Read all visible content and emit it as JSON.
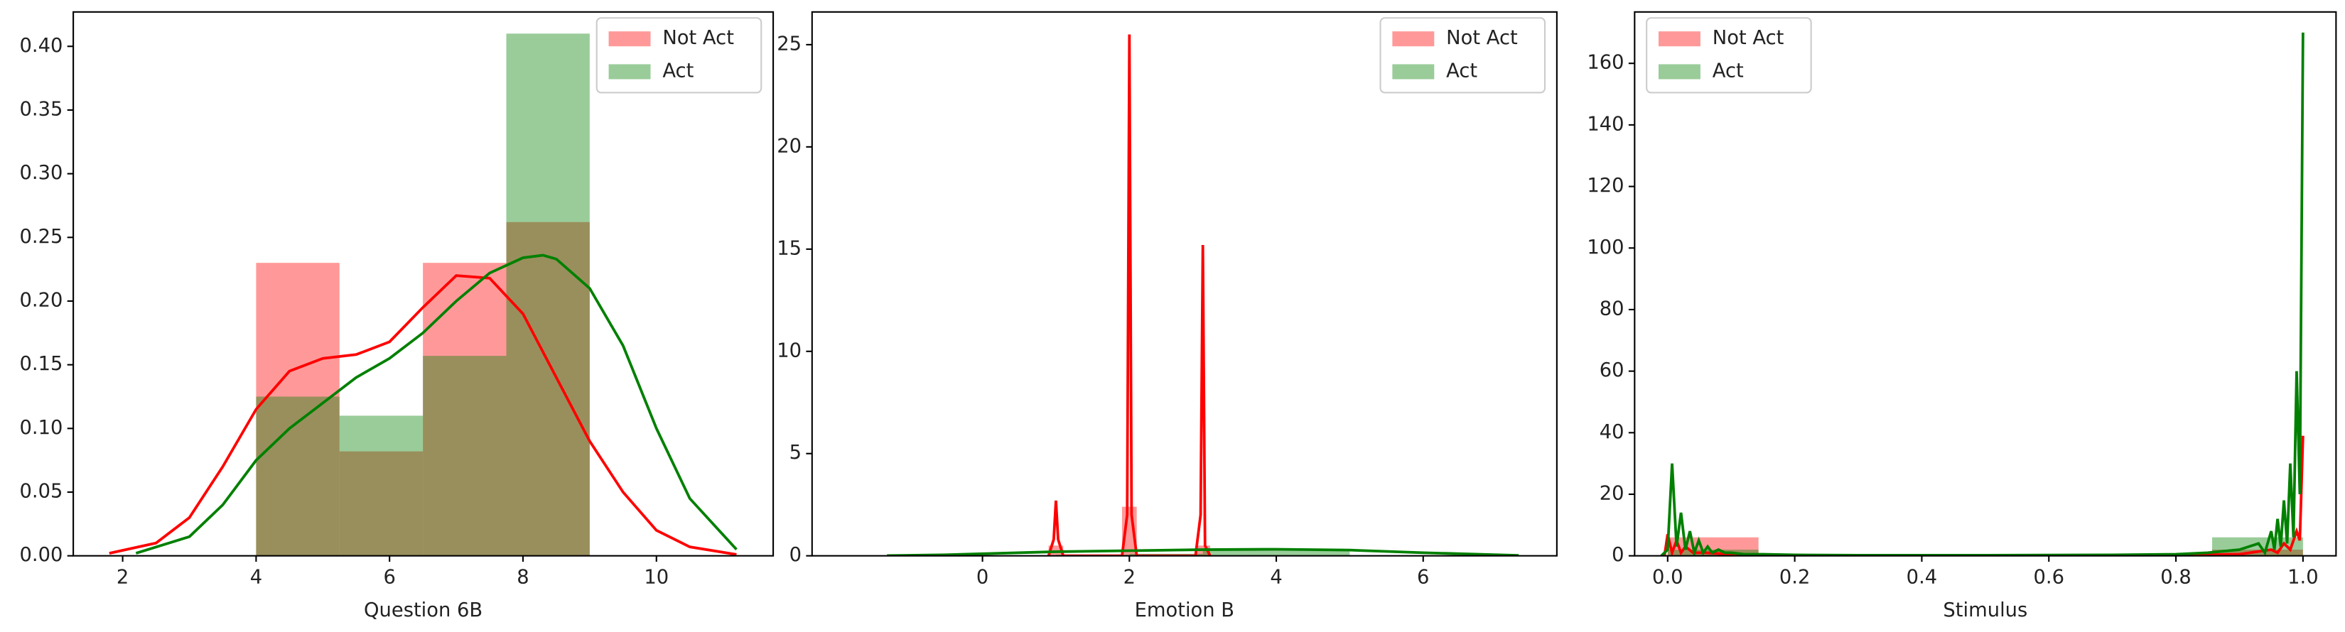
{
  "chart_data": [
    {
      "type": "histogram",
      "xlabel": "Question 6B",
      "legend": "upper right",
      "xlim": [
        1.26,
        11.75
      ],
      "ylim": [
        0,
        0.427
      ],
      "xticks": [
        2,
        4,
        6,
        8,
        10
      ],
      "yticks": [
        {
          "value": 0,
          "label": "0.00"
        },
        {
          "value": 0.05,
          "label": "0.05"
        },
        {
          "value": 0.1,
          "label": "0.10"
        },
        {
          "value": 0.15,
          "label": "0.15"
        },
        {
          "value": 0.2,
          "label": "0.20"
        },
        {
          "value": 0.25,
          "label": "0.25"
        },
        {
          "value": 0.3,
          "label": "0.30"
        },
        {
          "value": 0.35,
          "label": "0.35"
        },
        {
          "value": 0.4,
          "label": "0.40"
        }
      ],
      "series": [
        {
          "name": "Not Act",
          "color": "#ff0000",
          "bins": [
            4,
            5.25,
            6.5,
            7.75,
            9
          ],
          "values": [
            0.23,
            0.082,
            0.23,
            0.262
          ],
          "line": {
            "x": [
              1.8,
              2.5,
              3,
              3.5,
              4,
              4.5,
              5,
              5.5,
              6,
              6.5,
              7,
              7.5,
              8,
              8.5,
              9,
              9.5,
              10,
              10.5,
              11.2
            ],
            "values": [
              0.002,
              0.01,
              0.03,
              0.07,
              0.115,
              0.145,
              0.155,
              0.158,
              0.168,
              0.195,
              0.22,
              0.218,
              0.19,
              0.14,
              0.09,
              0.05,
              0.02,
              0.007,
              0.001
            ]
          }
        },
        {
          "name": "Act",
          "color": "#008000",
          "bins": [
            4,
            5.25,
            6.5,
            7.75,
            9
          ],
          "values": [
            0.125,
            0.11,
            0.157,
            0.41
          ],
          "line": {
            "x": [
              2.2,
              3,
              3.5,
              4,
              4.5,
              5,
              5.5,
              6,
              6.5,
              7,
              7.5,
              8,
              8.3,
              8.5,
              9,
              9.5,
              10,
              10.5,
              11.2
            ],
            "values": [
              0.002,
              0.015,
              0.04,
              0.075,
              0.1,
              0.12,
              0.14,
              0.155,
              0.175,
              0.2,
              0.222,
              0.234,
              0.236,
              0.233,
              0.21,
              0.165,
              0.1,
              0.045,
              0.005
            ]
          }
        }
      ]
    },
    {
      "type": "histogram",
      "xlabel": "Emotion B",
      "legend": "upper right",
      "xlim": [
        -2.32,
        7.82
      ],
      "ylim": [
        0,
        26.6
      ],
      "xticks": [
        0,
        2,
        4,
        6
      ],
      "yticks": [
        0,
        5,
        10,
        15,
        20,
        25
      ],
      "series": [
        {
          "name": "Not Act",
          "color": "#ff0000",
          "bins": [
            0.9,
            1.1,
            1.3,
            1.5,
            1.7,
            1.9,
            2.1,
            2.3,
            2.5,
            2.7,
            2.9,
            3.1
          ],
          "values": [
            0.5,
            0,
            0,
            0,
            0,
            2.4,
            0,
            0,
            0,
            0,
            0.5
          ],
          "line": {
            "x": [
              0.9,
              0.97,
              1,
              1.03,
              1.1,
              1.9,
              1.97,
              2,
              2.03,
              2.1,
              2.9,
              2.97,
              3,
              3.03,
              3.1
            ],
            "values": [
              0,
              0.8,
              2.7,
              0.8,
              0,
              0,
              2,
              25.5,
              2,
              0,
              0,
              2,
              15.2,
              0.5,
              0
            ]
          }
        },
        {
          "name": "Act",
          "color": "#008000",
          "bins": [
            1,
            2,
            3,
            4,
            5
          ],
          "values": [
            0.05,
            0.1,
            0.3,
            0.3
          ],
          "line": {
            "x": [
              -1.3,
              -0.5,
              0,
              1,
              2,
              3,
              4,
              5,
              6,
              7.3
            ],
            "values": [
              0.01,
              0.05,
              0.1,
              0.2,
              0.25,
              0.3,
              0.32,
              0.28,
              0.15,
              0.02
            ]
          }
        }
      ]
    },
    {
      "type": "histogram",
      "xlabel": "Stimulus",
      "legend": "upper left",
      "xlim": [
        -0.052,
        1.052
      ],
      "ylim": [
        0,
        176.7
      ],
      "xticks": [
        {
          "value": 0,
          "label": "0.0"
        },
        {
          "value": 0.2,
          "label": "0.2"
        },
        {
          "value": 0.4,
          "label": "0.4"
        },
        {
          "value": 0.6,
          "label": "0.6"
        },
        {
          "value": 0.8,
          "label": "0.8"
        },
        {
          "value": 1,
          "label": "1.0"
        }
      ],
      "yticks": [
        0,
        20,
        40,
        60,
        80,
        100,
        120,
        140,
        160
      ],
      "series": [
        {
          "name": "Not Act",
          "color": "#ff0000",
          "bins": [
            0,
            0.143,
            0.286,
            0.429,
            0.571,
            0.714,
            0.857,
            1
          ],
          "values": [
            6,
            0,
            0,
            0,
            0,
            0,
            2
          ],
          "line": {
            "x": [
              -0.005,
              0,
              0.007,
              0.014,
              0.021,
              0.028,
              0.04,
              0.06,
              0.1,
              0.2,
              0.5,
              0.8,
              0.9,
              0.95,
              0.96,
              0.97,
              0.98,
              0.99,
              0.995,
              1.0
            ],
            "values": [
              0,
              7,
              1,
              5,
              1,
              3,
              1,
              1,
              0.5,
              0.2,
              0.1,
              0.2,
              0.5,
              2,
              1,
              4,
              2,
              8,
              5,
              39
            ]
          }
        },
        {
          "name": "Act",
          "color": "#008000",
          "bins": [
            0,
            0.143,
            0.286,
            0.429,
            0.571,
            0.714,
            0.857,
            1
          ],
          "values": [
            2,
            0,
            0,
            0,
            0,
            0,
            6
          ],
          "line": {
            "x": [
              -0.01,
              0,
              0.007,
              0.014,
              0.021,
              0.028,
              0.035,
              0.042,
              0.049,
              0.056,
              0.063,
              0.07,
              0.08,
              0.09,
              0.1,
              0.12,
              0.15,
              0.2,
              0.3,
              0.5,
              0.7,
              0.8,
              0.85,
              0.9,
              0.93,
              0.94,
              0.95,
              0.955,
              0.96,
              0.965,
              0.97,
              0.975,
              0.98,
              0.985,
              0.99,
              0.995,
              1.0
            ],
            "values": [
              0,
              2,
              30,
              3,
              14,
              2,
              8,
              1,
              5,
              1,
              3,
              1,
              2,
              1,
              1,
              0.5,
              0.5,
              0.3,
              0.2,
              0.2,
              0.3,
              0.5,
              1,
              2,
              4,
              1,
              8,
              2,
              12,
              3,
              18,
              4,
              30,
              6,
              60,
              20,
              170
            ]
          }
        }
      ]
    }
  ]
}
